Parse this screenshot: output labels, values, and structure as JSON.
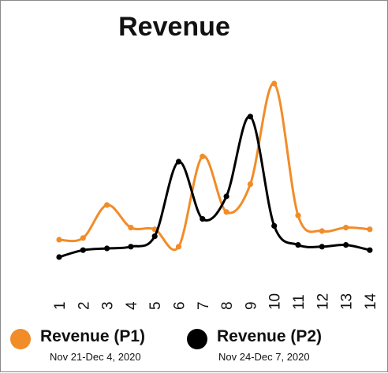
{
  "chart_data": {
    "type": "line",
    "title": "Revenue",
    "categories": [
      "1",
      "2",
      "3",
      "4",
      "5",
      "6",
      "7",
      "8",
      "9",
      "10",
      "11",
      "12",
      "13",
      "14"
    ],
    "ylim": [
      0,
      100
    ],
    "grid": false,
    "legend_placement": "bottom",
    "series": [
      {
        "name": "Revenue (P1)",
        "period": "Nov 21-Dec 4, 2020",
        "color": "#F28C28",
        "values": [
          10,
          11,
          30,
          17,
          16,
          6,
          58,
          26,
          42,
          100,
          24,
          15,
          17,
          16
        ]
      },
      {
        "name": "Revenue (P2)",
        "period": "Nov 24-Dec 7, 2020",
        "color": "#000000",
        "values": [
          0,
          4,
          5,
          6,
          12,
          55,
          22,
          35,
          81,
          18,
          7,
          6,
          7,
          4
        ]
      }
    ]
  }
}
